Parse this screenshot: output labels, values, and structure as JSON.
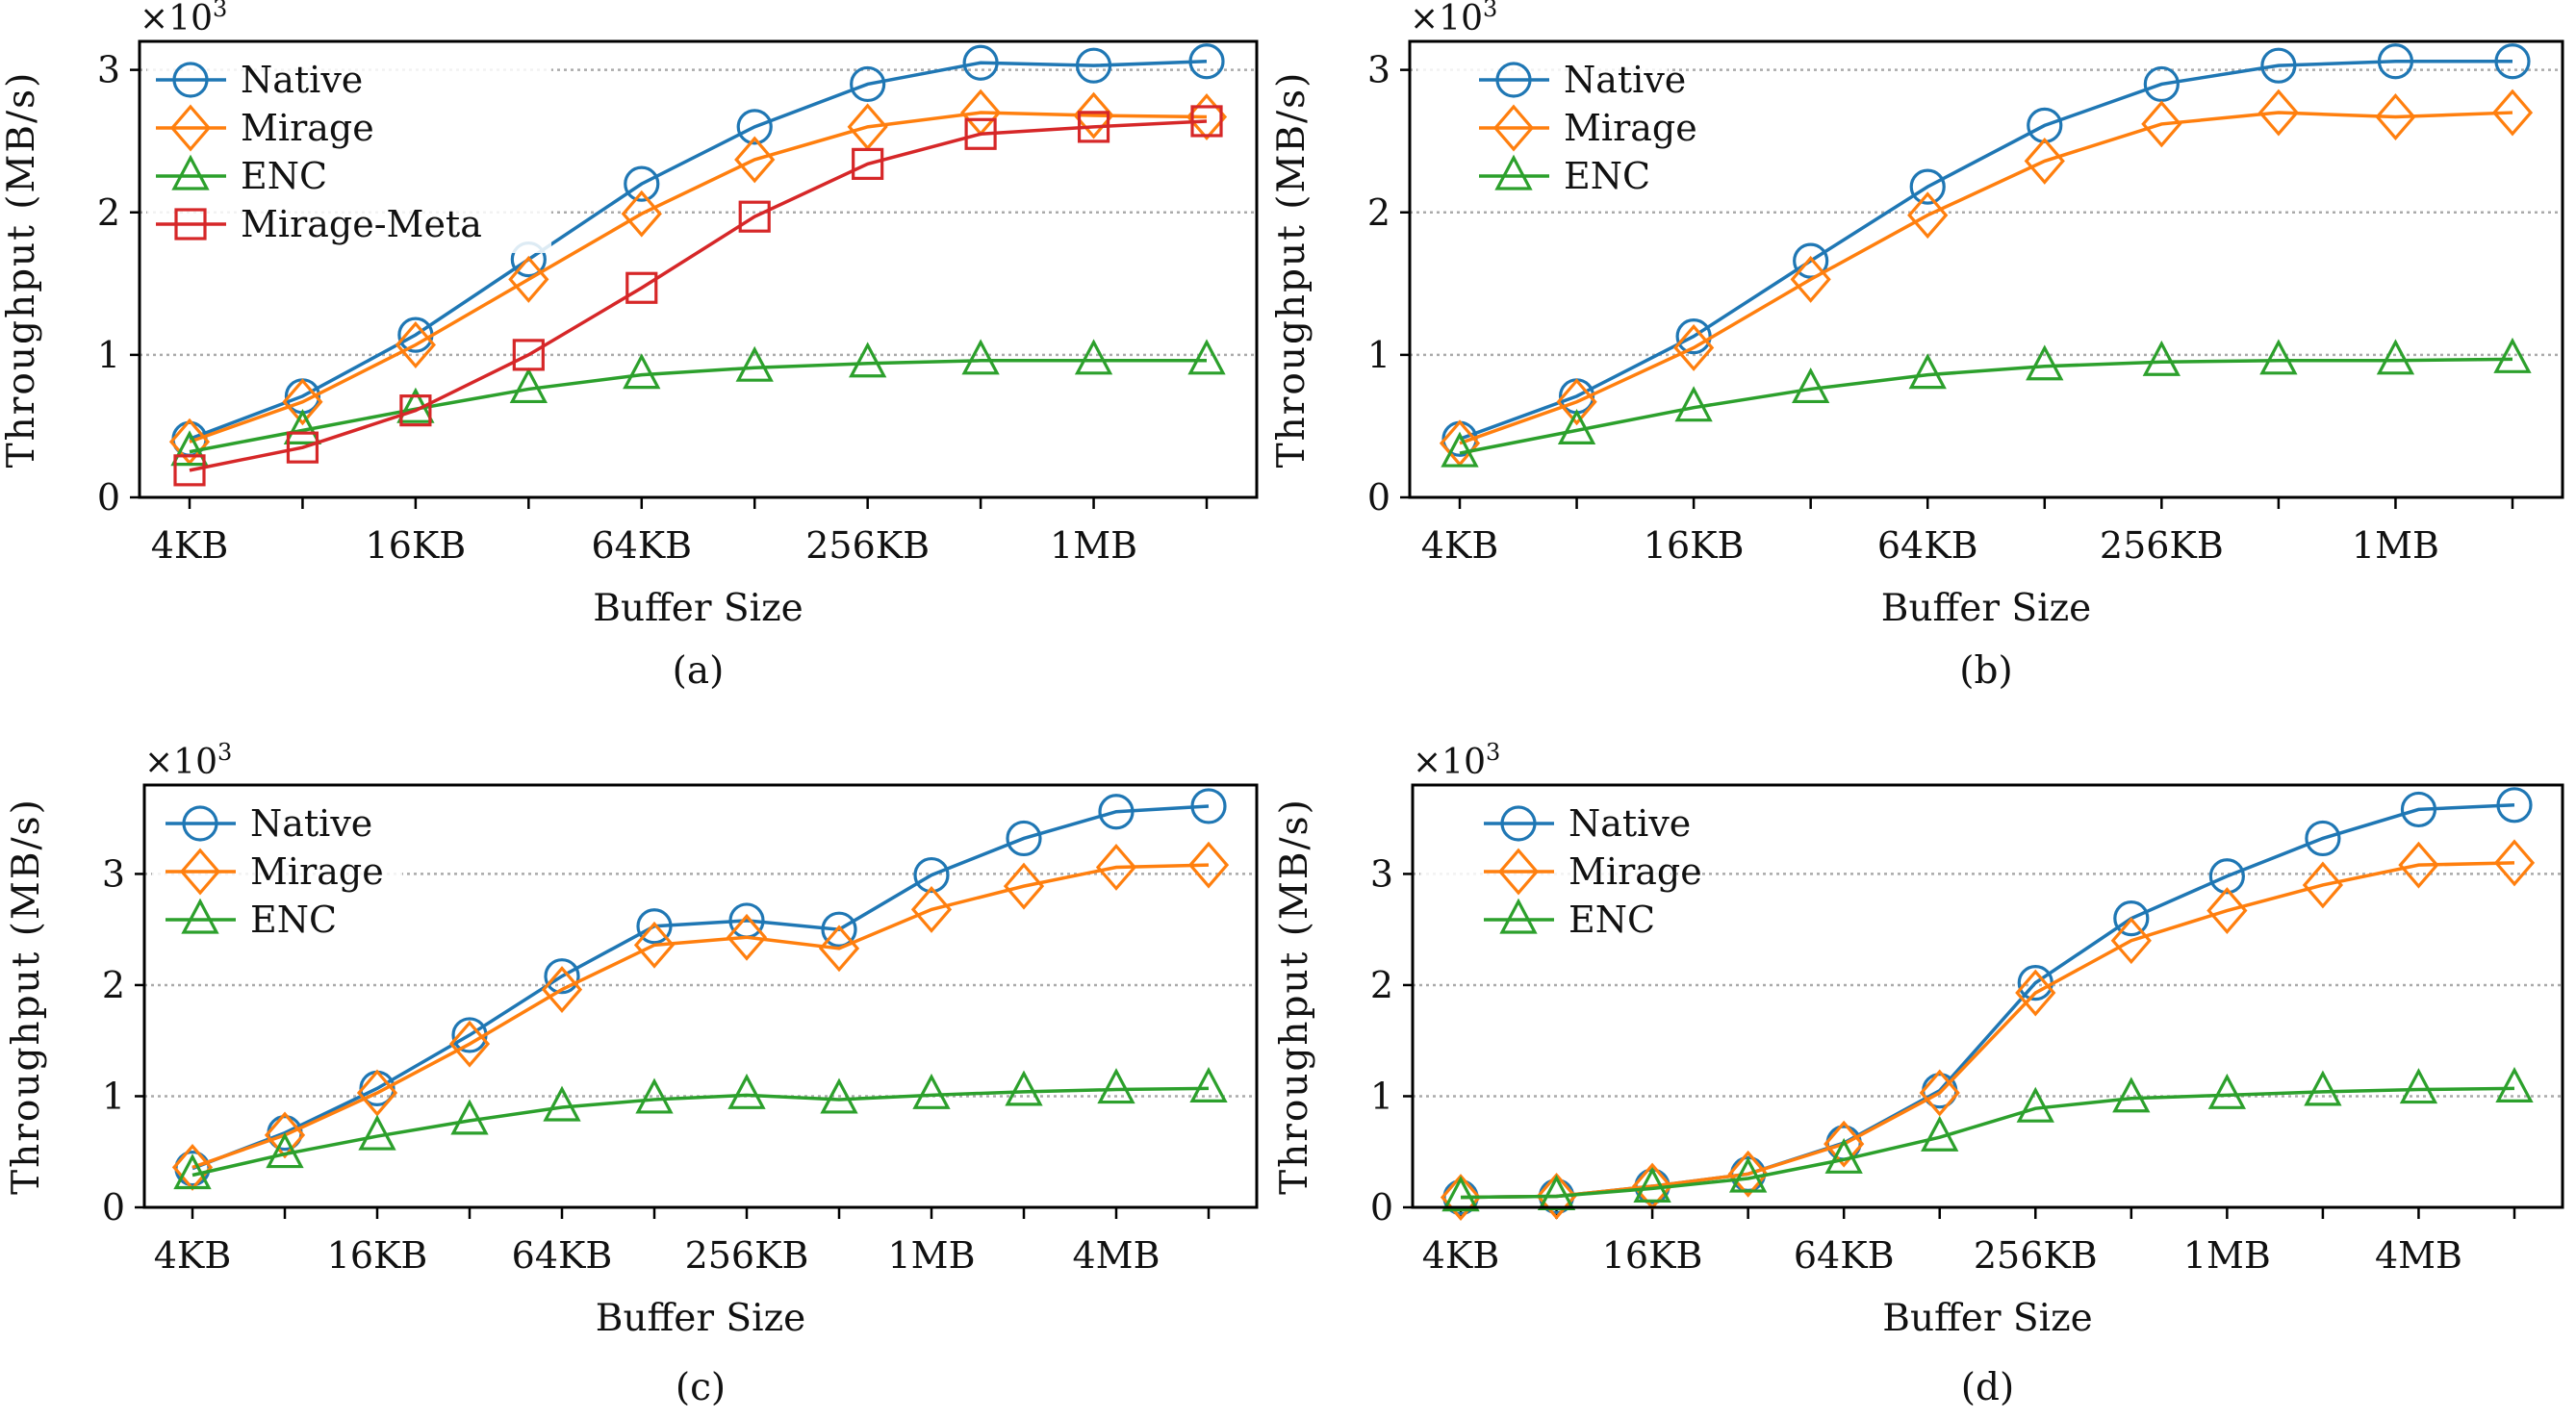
{
  "colors": {
    "Native": "#1f77b4",
    "Mirage": "#ff7f0e",
    "ENC": "#2ca02c",
    "Mirage-Meta": "#d62728",
    "grid": "#aaaaaa"
  },
  "chart_data": [
    {
      "type": "line",
      "caption": "(a)",
      "xlabel": "Buffer Size",
      "ylabel": "Throughput (MB/s)",
      "y_multiplier": "×10",
      "y_multiplier_exp": "3",
      "x": [
        "4KB",
        "8KB",
        "16KB",
        "32KB",
        "64KB",
        "128KB",
        "256KB",
        "512KB",
        "1MB",
        "2MB"
      ],
      "xticklabels": [
        "4KB",
        "",
        "16KB",
        "",
        "64KB",
        "",
        "256KB",
        "",
        "1MB",
        ""
      ],
      "yticks": [
        0,
        1,
        2,
        3
      ],
      "ylim": [
        0,
        3.2
      ],
      "grid": "y-dotted",
      "legend": "top-left",
      "series": [
        {
          "name": "Native",
          "marker": "circle",
          "values": [
            0.41,
            0.71,
            1.14,
            1.67,
            2.2,
            2.6,
            2.9,
            3.05,
            3.03,
            3.06
          ]
        },
        {
          "name": "Mirage",
          "marker": "diamond",
          "values": [
            0.39,
            0.67,
            1.07,
            1.53,
            1.99,
            2.37,
            2.6,
            2.7,
            2.68,
            2.67
          ]
        },
        {
          "name": "ENC",
          "marker": "triangle",
          "values": [
            0.32,
            0.47,
            0.62,
            0.76,
            0.86,
            0.91,
            0.94,
            0.96,
            0.96,
            0.96
          ]
        },
        {
          "name": "Mirage-Meta",
          "marker": "square",
          "values": [
            0.19,
            0.35,
            0.61,
            1.0,
            1.47,
            1.97,
            2.34,
            2.55,
            2.6,
            2.64
          ]
        }
      ]
    },
    {
      "type": "line",
      "caption": "(b)",
      "xlabel": "Buffer Size",
      "ylabel": "Throughput (MB/s)",
      "y_multiplier": "×10",
      "y_multiplier_exp": "3",
      "x": [
        "4KB",
        "8KB",
        "16KB",
        "32KB",
        "64KB",
        "128KB",
        "256KB",
        "512KB",
        "1MB",
        "2MB"
      ],
      "xticklabels": [
        "4KB",
        "",
        "16KB",
        "",
        "64KB",
        "",
        "256KB",
        "",
        "1MB",
        ""
      ],
      "yticks": [
        0,
        1,
        2,
        3
      ],
      "ylim": [
        0,
        3.2
      ],
      "grid": "y-dotted",
      "legend": "top-left",
      "series": [
        {
          "name": "Native",
          "marker": "circle",
          "values": [
            0.41,
            0.71,
            1.13,
            1.66,
            2.18,
            2.61,
            2.9,
            3.03,
            3.06,
            3.06
          ]
        },
        {
          "name": "Mirage",
          "marker": "diamond",
          "values": [
            0.38,
            0.67,
            1.05,
            1.53,
            1.98,
            2.36,
            2.62,
            2.7,
            2.67,
            2.7
          ]
        },
        {
          "name": "ENC",
          "marker": "triangle",
          "values": [
            0.31,
            0.47,
            0.63,
            0.76,
            0.86,
            0.92,
            0.95,
            0.96,
            0.96,
            0.97
          ]
        }
      ]
    },
    {
      "type": "line",
      "caption": "(c)",
      "xlabel": "Buffer Size",
      "ylabel": "Throughput (MB/s)",
      "y_multiplier": "×10",
      "y_multiplier_exp": "3",
      "x": [
        "4KB",
        "8KB",
        "16KB",
        "32KB",
        "64KB",
        "128KB",
        "256KB",
        "512KB",
        "1MB",
        "2MB",
        "4MB",
        "8MB"
      ],
      "xticklabels": [
        "4KB",
        "",
        "16KB",
        "",
        "64KB",
        "",
        "256KB",
        "",
        "1MB",
        "",
        "4MB",
        ""
      ],
      "yticks": [
        0,
        1,
        2,
        3
      ],
      "ylim": [
        0,
        3.8
      ],
      "grid": "y-dotted",
      "legend": "top-left",
      "series": [
        {
          "name": "Native",
          "marker": "circle",
          "values": [
            0.35,
            0.67,
            1.07,
            1.55,
            2.08,
            2.53,
            2.58,
            2.5,
            2.99,
            3.32,
            3.56,
            3.61
          ]
        },
        {
          "name": "Mirage",
          "marker": "diamond",
          "values": [
            0.36,
            0.65,
            1.03,
            1.47,
            1.96,
            2.36,
            2.43,
            2.33,
            2.68,
            2.89,
            3.06,
            3.08
          ]
        },
        {
          "name": "ENC",
          "marker": "triangle",
          "values": [
            0.29,
            0.48,
            0.64,
            0.78,
            0.9,
            0.97,
            1.01,
            0.97,
            1.01,
            1.04,
            1.06,
            1.07
          ]
        }
      ]
    },
    {
      "type": "line",
      "caption": "(d)",
      "xlabel": "Buffer Size",
      "ylabel": "Throughput (MB/s)",
      "y_multiplier": "×10",
      "y_multiplier_exp": "3",
      "x": [
        "4KB",
        "8KB",
        "16KB",
        "32KB",
        "64KB",
        "128KB",
        "256KB",
        "512KB",
        "1MB",
        "2MB",
        "4MB",
        "8MB"
      ],
      "xticklabels": [
        "4KB",
        "",
        "16KB",
        "",
        "64KB",
        "",
        "256KB",
        "",
        "1MB",
        "",
        "4MB",
        ""
      ],
      "yticks": [
        0,
        1,
        2,
        3
      ],
      "ylim": [
        0,
        3.8
      ],
      "grid": "y-dotted",
      "legend": "top-left",
      "series": [
        {
          "name": "Native",
          "marker": "circle",
          "values": [
            0.09,
            0.1,
            0.19,
            0.3,
            0.58,
            1.05,
            2.02,
            2.6,
            2.98,
            3.32,
            3.58,
            3.62
          ]
        },
        {
          "name": "Mirage",
          "marker": "diamond",
          "values": [
            0.09,
            0.1,
            0.19,
            0.3,
            0.57,
            1.03,
            1.93,
            2.4,
            2.67,
            2.9,
            3.08,
            3.1
          ]
        },
        {
          "name": "ENC",
          "marker": "triangle",
          "values": [
            0.09,
            0.1,
            0.17,
            0.26,
            0.43,
            0.63,
            0.89,
            0.98,
            1.01,
            1.04,
            1.06,
            1.07
          ]
        }
      ]
    }
  ]
}
